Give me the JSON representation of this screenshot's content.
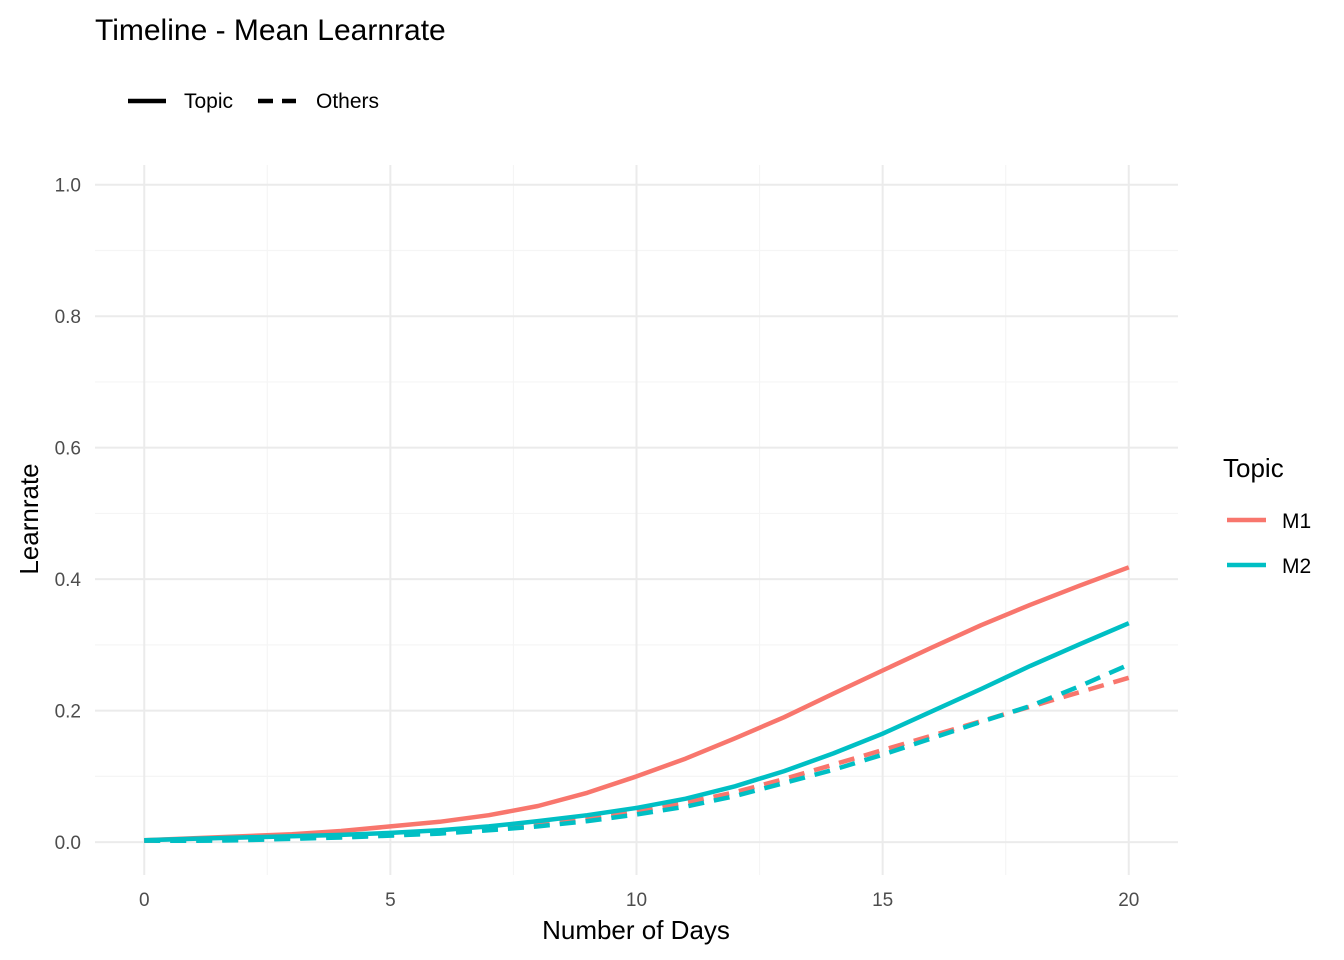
{
  "chart_data": {
    "type": "line",
    "title": "Timeline - Mean Learnrate",
    "xlabel": "Number of Days",
    "ylabel": "Learnrate",
    "xlim": [
      -1,
      21
    ],
    "ylim": [
      -0.05,
      1.03
    ],
    "x_ticks": [
      0,
      5,
      10,
      15,
      20
    ],
    "y_ticks": [
      0.0,
      0.2,
      0.4,
      0.6,
      0.8,
      1.0
    ],
    "x_tick_labels": [
      "0",
      "5",
      "10",
      "15",
      "20"
    ],
    "y_tick_labels": [
      "0.0",
      "0.2",
      "0.4",
      "0.6",
      "0.8",
      "1.0"
    ],
    "grid": true,
    "x": [
      0,
      1,
      2,
      3,
      4,
      5,
      6,
      7,
      8,
      9,
      10,
      11,
      12,
      13,
      14,
      15,
      16,
      17,
      18,
      19,
      20
    ],
    "color_legend": {
      "title": "Topic",
      "position": "right",
      "entries": [
        {
          "label": "M1",
          "color": "#F8766D"
        },
        {
          "label": "M2",
          "color": "#00BFC4"
        }
      ]
    },
    "linetype_legend": {
      "position": "top-left",
      "entries": [
        {
          "label": "Topic",
          "linetype": "solid"
        },
        {
          "label": "Others",
          "linetype": "dashed"
        }
      ]
    },
    "series": [
      {
        "topic": "M1",
        "linetype": "solid",
        "color": "#F8766D",
        "values": [
          0.003,
          0.006,
          0.009,
          0.012,
          0.017,
          0.024,
          0.031,
          0.041,
          0.055,
          0.075,
          0.1,
          0.127,
          0.158,
          0.19,
          0.226,
          0.261,
          0.296,
          0.33,
          0.361,
          0.39,
          0.418
        ]
      },
      {
        "topic": "M2",
        "linetype": "solid",
        "color": "#00BFC4",
        "values": [
          0.003,
          0.005,
          0.007,
          0.009,
          0.011,
          0.014,
          0.018,
          0.024,
          0.032,
          0.041,
          0.052,
          0.066,
          0.085,
          0.108,
          0.135,
          0.165,
          0.199,
          0.233,
          0.268,
          0.301,
          0.333
        ]
      },
      {
        "topic": "M1",
        "linetype": "dashed",
        "color": "#F8766D",
        "values": [
          0.002,
          0.003,
          0.004,
          0.006,
          0.008,
          0.011,
          0.015,
          0.02,
          0.027,
          0.036,
          0.047,
          0.06,
          0.076,
          0.096,
          0.118,
          0.14,
          0.162,
          0.184,
          0.206,
          0.228,
          0.25
        ]
      },
      {
        "topic": "M2",
        "linetype": "dashed",
        "color": "#00BFC4",
        "values": [
          0.002,
          0.002,
          0.003,
          0.005,
          0.007,
          0.01,
          0.013,
          0.018,
          0.024,
          0.032,
          0.042,
          0.054,
          0.07,
          0.09,
          0.11,
          0.133,
          0.158,
          0.183,
          0.207,
          0.237,
          0.27
        ]
      }
    ]
  }
}
